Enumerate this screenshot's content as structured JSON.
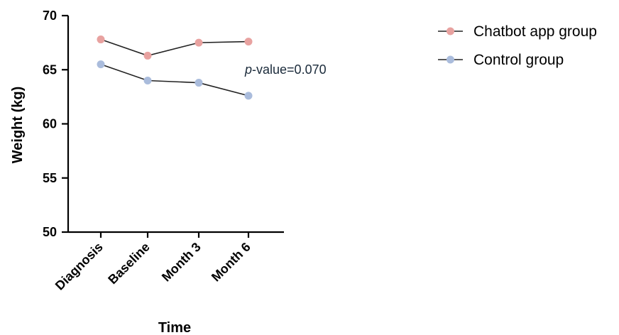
{
  "chart_data": {
    "type": "line",
    "categories": [
      "Diagnosis",
      "Baseline",
      "Month 3",
      "Month 6"
    ],
    "series": [
      {
        "name": "Chatbot app group",
        "values": [
          67.8,
          66.3,
          67.5,
          67.6
        ],
        "color": "#e8a2a0"
      },
      {
        "name": "Control group",
        "values": [
          65.5,
          64.0,
          63.8,
          62.6
        ],
        "color": "#aabcdc"
      }
    ],
    "xlabel": "Time",
    "ylabel": "Weight (kg)",
    "ylim": [
      50,
      70
    ],
    "yticks": [
      50,
      55,
      60,
      65,
      70
    ],
    "grid": false,
    "legend_position": "top-right",
    "annotation": {
      "italic_part": "p",
      "rest": "-value=0.070"
    }
  }
}
